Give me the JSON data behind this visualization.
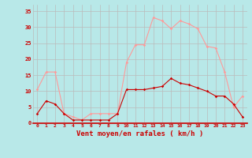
{
  "hours": [
    0,
    1,
    2,
    3,
    4,
    5,
    6,
    7,
    8,
    9,
    10,
    11,
    12,
    13,
    14,
    15,
    16,
    17,
    18,
    19,
    20,
    21,
    22,
    23
  ],
  "vent_moyen": [
    3,
    7,
    6,
    3,
    1,
    1,
    1,
    1,
    1,
    3,
    10.5,
    10.5,
    10.5,
    11,
    11.5,
    14,
    12.5,
    12,
    11,
    10,
    8.5,
    8.5,
    6,
    2
  ],
  "en_rafales": [
    10.5,
    16,
    16,
    3,
    2,
    1,
    3,
    3,
    3,
    3,
    19,
    24.5,
    24.5,
    33,
    32,
    29.5,
    32,
    31,
    29.5,
    24,
    23.5,
    16,
    5,
    8.5
  ],
  "xlabel": "Vent moyen/en rafales ( km/h )",
  "ylim": [
    0,
    37
  ],
  "xlim": [
    -0.5,
    23.5
  ],
  "yticks": [
    0,
    5,
    10,
    15,
    20,
    25,
    30,
    35
  ],
  "xtick_labels": [
    "0",
    "1",
    "2",
    "3",
    "4",
    "5",
    "6",
    "7",
    "8",
    "9",
    "10",
    "11",
    "12",
    "13",
    "14",
    "15",
    "16",
    "17",
    "18",
    "19",
    "20",
    "21",
    "22",
    "23"
  ],
  "color_moyen": "#cc0000",
  "color_rafales": "#ff9999",
  "bg_color": "#b8e8e8",
  "grid_color": "#bbbbbb",
  "spine_color": "#cc0000"
}
